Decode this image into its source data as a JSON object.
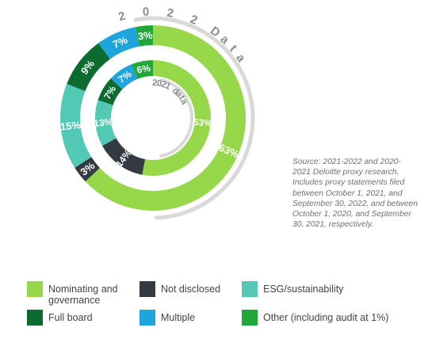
{
  "chart_data": {
    "type": "pie",
    "subtype": "nested-donut",
    "rings": [
      {
        "name": "2 0 2 2 Data",
        "segments": [
          {
            "category": "Nominating and governance",
            "value": 63,
            "label": "63%"
          },
          {
            "category": "Not disclosed",
            "value": 3,
            "label": "3%"
          },
          {
            "category": "ESG/sustainability",
            "value": 15,
            "label": "15%"
          },
          {
            "category": "Full board",
            "value": 9,
            "label": "9%"
          },
          {
            "category": "Multiple",
            "value": 7,
            "label": "7%"
          },
          {
            "category": "Other (including audit at 1%)",
            "value": 3,
            "label": "3%"
          }
        ]
      },
      {
        "name": "2021 data",
        "segments": [
          {
            "category": "Nominating and governance",
            "value": 53,
            "label": "53%"
          },
          {
            "category": "Not disclosed",
            "value": 14,
            "label": "14%"
          },
          {
            "category": "ESG/sustainability",
            "value": 13,
            "label": "13%"
          },
          {
            "category": "Full board",
            "value": 7,
            "label": "7%"
          },
          {
            "category": "Multiple",
            "value": 7,
            "label": "7%"
          },
          {
            "category": "Other (including audit at 1%)",
            "value": 6,
            "label": "6%"
          }
        ]
      }
    ],
    "legend": {
      "placement": "bottom",
      "entries": [
        {
          "label": "Nominating and\ngovernance",
          "color": "#96d84a"
        },
        {
          "label": "Not disclosed",
          "color": "#333a42"
        },
        {
          "label": "ESG/sustainability",
          "color": "#52c9b4"
        },
        {
          "label": "Full board",
          "color": "#0c6b2f"
        },
        {
          "label": "Multiple",
          "color": "#1ea6dc"
        },
        {
          "label": "Other (including audit at 1%)",
          "color": "#23a638"
        }
      ]
    },
    "colors": {
      "Nominating and governance": "#96d84a",
      "Not disclosed": "#333a42",
      "ESG/sustainability": "#52c9b4",
      "Full board": "#0c6b2f",
      "Multiple": "#1ea6dc",
      "Other (including audit at 1%)": "#23a638"
    },
    "source_note": "Source: 2021-2022 and 2020-2021 Deloitte proxy research. Includes proxy statements filed between October 1, 2021, and September 30, 2022, and between October 1, 2020, and September 30, 2021, respectively."
  }
}
